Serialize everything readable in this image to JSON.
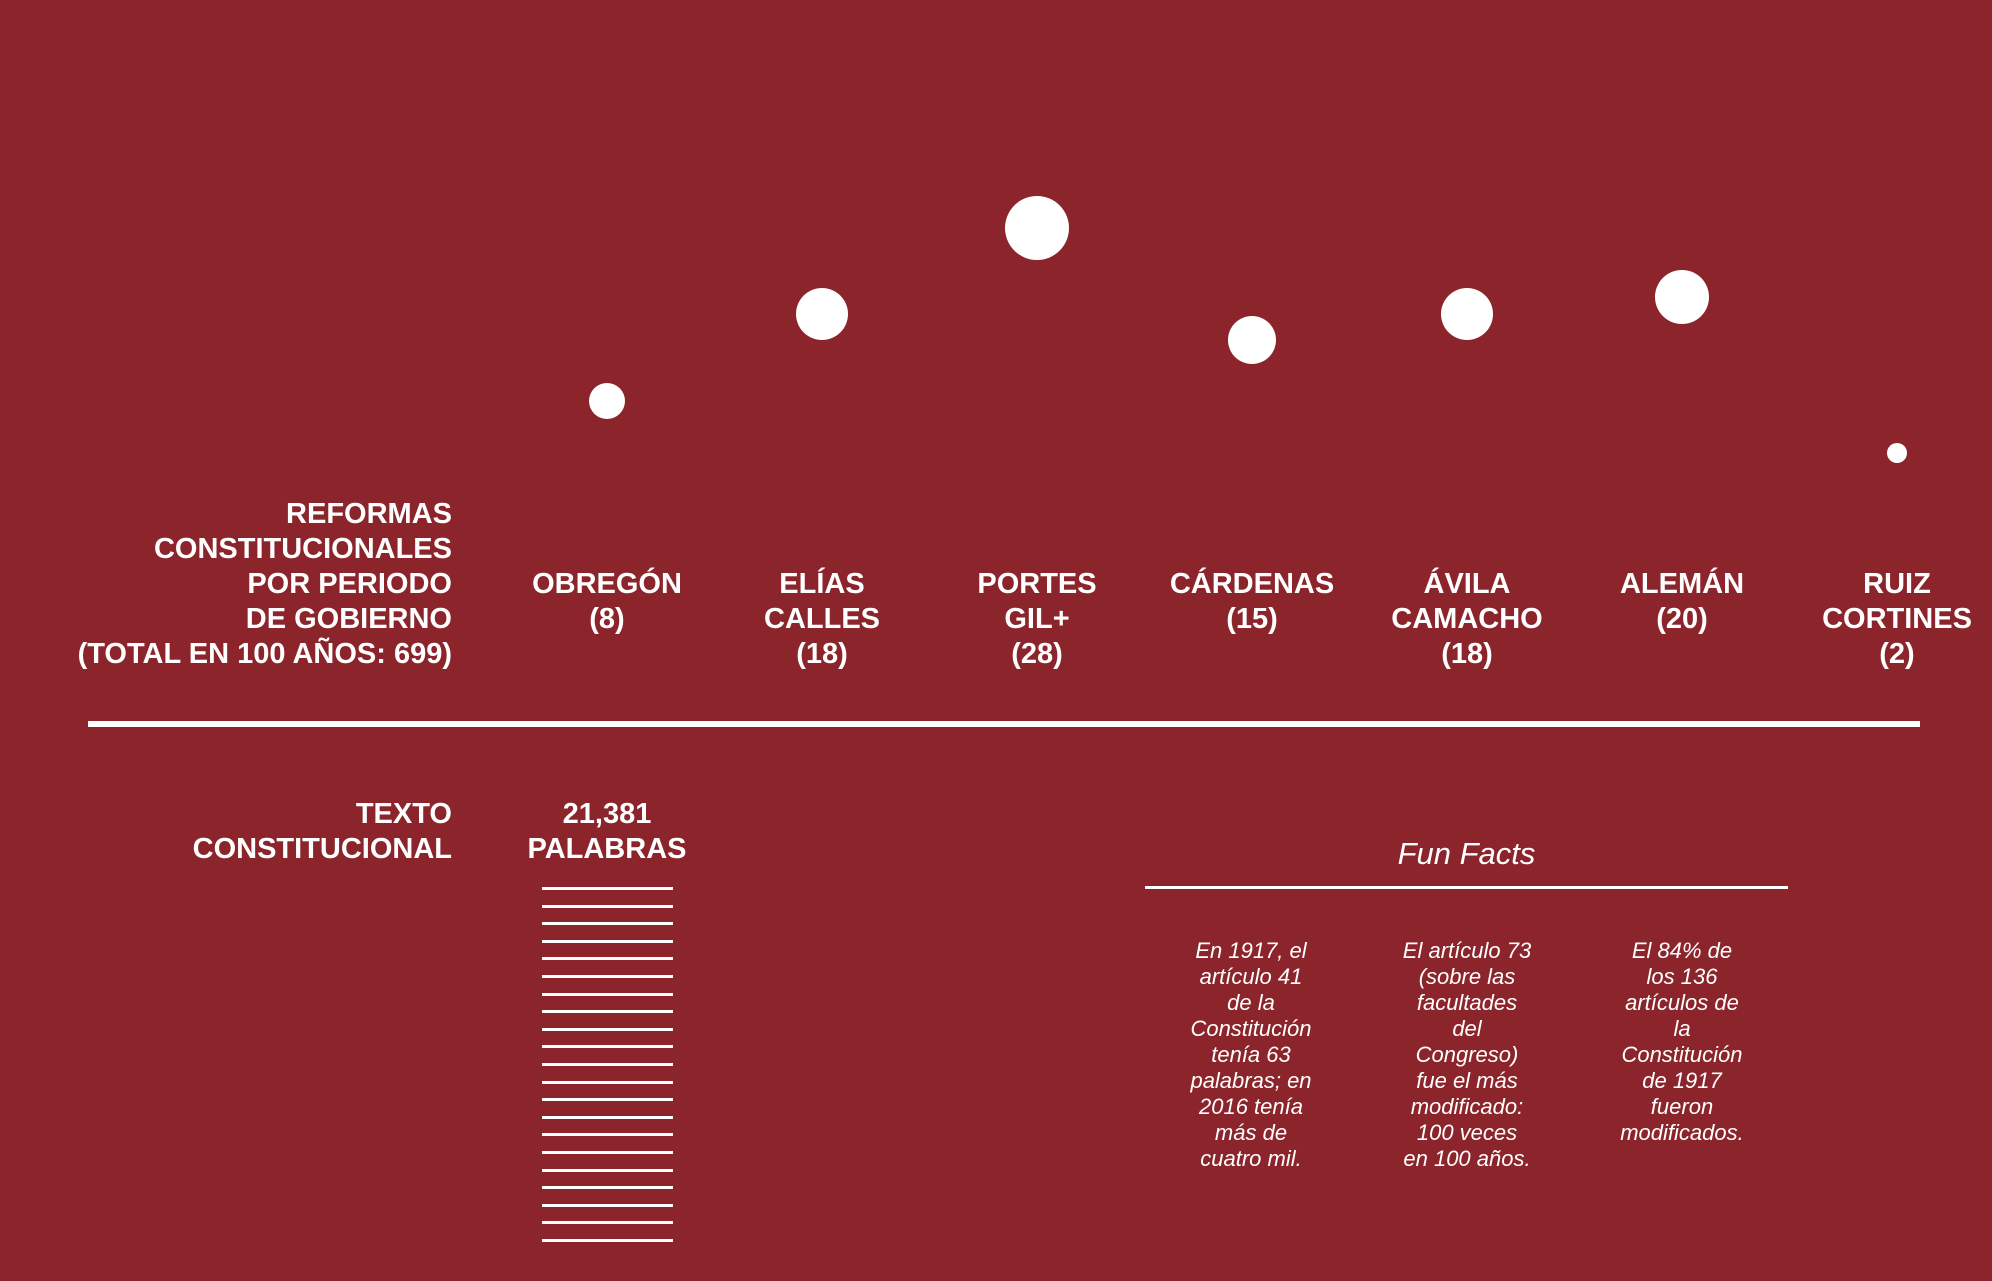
{
  "section_labels": {
    "reformas": "REFORMAS\nCONSTITUCIONALES\nPOR PERIODO\nDE GOBIERNO\n(TOTAL EN 100 AÑOS: 699)",
    "texto": "TEXTO\nCONSTITUCIONAL"
  },
  "chart_data": {
    "type": "scatter",
    "title": "REFORMAS CONSTITUCIONALES POR PERIODO DE GOBIERNO (TOTAL EN 100 AÑOS: 699)",
    "total": 699,
    "series": [
      {
        "label": "OBREGÓN\n(8)",
        "president": "OBREGÓN",
        "value": 8
      },
      {
        "label": "ELÍAS\nCALLES\n(18)",
        "president": "ELÍAS CALLES",
        "value": 18
      },
      {
        "label": "PORTES\nGIL+\n(28)",
        "president": "PORTES GIL+",
        "value": 28
      },
      {
        "label": "CÁRDENAS\n(15)",
        "president": "CÁRDENAS",
        "value": 15
      },
      {
        "label": "ÁVILA\nCAMACHO\n(18)",
        "president": "ÁVILA CAMACHO",
        "value": 18
      },
      {
        "label": "ALEMÁN\n(20)",
        "president": "ALEMÁN",
        "value": 20
      },
      {
        "label": "RUIZ\nCORTINES\n(2)",
        "president": "RUIZ CORTINES",
        "value": 2
      }
    ]
  },
  "texto_constitucional": {
    "words_label": "21,381\nPALABRAS",
    "words": 21381
  },
  "fun_facts": {
    "title": "Fun Facts",
    "items": [
      "En 1917, el\nartículo 41\nde la\nConstitución\ntenía 63\npalabras; en\n2016 tenía\nmás de\ncuatro mil.",
      "El artículo 73\n(sobre las\nfacultades\ndel\nCongreso)\nfue el más\nmodificado:\n100 veces\nen 100 años.",
      "El 84% de\nlos 136\nartículos de\nla\nConstitución\nde 1917\nfueron\nmodificados."
    ]
  },
  "colors": {
    "background": "#8b252b",
    "foreground": "#ffffff"
  }
}
